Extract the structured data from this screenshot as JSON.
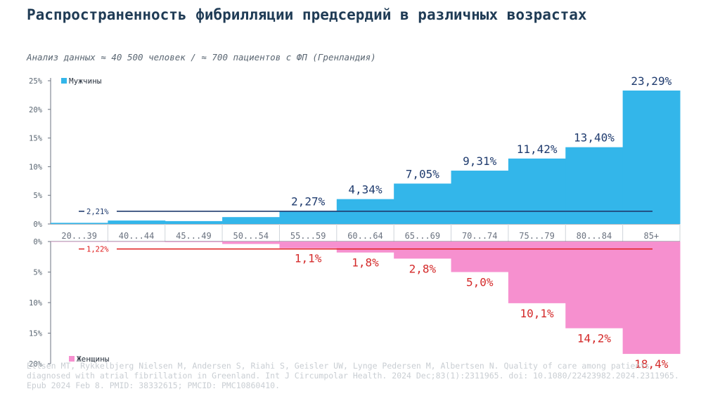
{
  "title": "Распространенность фибрилляции предсердий в различных возрастах",
  "subtitle": "Анализ данных ≈ 40 500 человек / ≈ 700 пациентов с ФП  (Гренландия)",
  "citation": "Ellsen MT, Rykkelbjerg Nielsen M, Andersen S, Riahi S, Geisler UW, Lynge Pedersen M, Albertsen N. Quality of care among patients diagnosed with atrial fibrillation in Greenland. Int J Circumpolar Health. 2024 Dec;83(1):2311965. doi: 10.1080/22423982.2024.2311965. Epub 2024 Feb 8. PMID: 38332615; PMCID: PMC10860410.",
  "colors": {
    "men": "#33b6ea",
    "women": "#f690cf",
    "men_avg_line": "#1f3b6e",
    "women_avg_line": "#e01b1b",
    "men_label": "#1f3b6e",
    "women_label": "#d42a2a",
    "axis": "#6b7380"
  },
  "chart_data": {
    "type": "bar",
    "categories": [
      "20...39",
      "40...44",
      "45...49",
      "50...54",
      "55...59",
      "60...64",
      "65...69",
      "70...74",
      "75...79",
      "80...84",
      "85+"
    ],
    "series": [
      {
        "name": "Мужчины",
        "direction": "up",
        "values": [
          0.2,
          0.6,
          0.5,
          1.2,
          2.27,
          4.34,
          7.05,
          9.31,
          11.42,
          13.4,
          23.29
        ],
        "labels": [
          "",
          "",
          "",
          "",
          "2,27%",
          "4,34%",
          "7,05%",
          "9,31%",
          "11,42%",
          "13,40%",
          "23,29%"
        ],
        "average": 2.21,
        "average_label": "2,21%",
        "yticks": [
          "25%",
          "20%",
          "15%",
          "10%",
          "5%",
          "0%"
        ],
        "ylim": [
          0,
          25
        ]
      },
      {
        "name": "Женщины",
        "direction": "down",
        "values": [
          0.0,
          0.0,
          0.1,
          0.4,
          1.1,
          1.8,
          2.8,
          5.0,
          10.1,
          14.2,
          18.4
        ],
        "labels": [
          "",
          "",
          "",
          "",
          "1,1%",
          "1,8%",
          "2,8%",
          "5,0%",
          "10,1%",
          "14,2%",
          "18,4%"
        ],
        "average": 1.22,
        "average_label": "1,22%",
        "yticks": [
          "0%",
          "5%",
          "10%",
          "15%",
          "20%"
        ],
        "ylim": [
          0,
          20
        ]
      }
    ]
  }
}
